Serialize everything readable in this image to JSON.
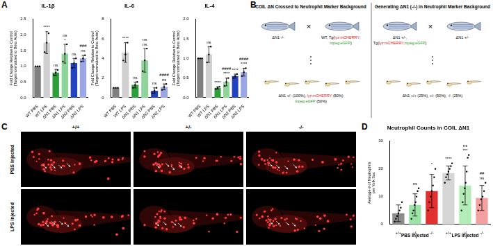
{
  "panel_labels": [
    "A",
    "B",
    "C",
    "D"
  ],
  "chart_data": [
    {
      "type": "bar",
      "title": "IL-1β",
      "ylabel": [
        "Fold Change Relative to Control",
        "(Target normalized to Beta Actin)"
      ],
      "categories": [
        "WT PBS",
        "WT LPS",
        "ΔN1 PBS",
        "ΔN1 LPS",
        "ΔN2 PBS",
        "ΔN2 LPS"
      ],
      "values": [
        1.0,
        1.75,
        0.8,
        1.4,
        1.1,
        1.25
      ],
      "colors": [
        "#7f7f7f",
        "#d0d0d0",
        "#2e9e3a",
        "#8fd49a",
        "#2342c0",
        "#9aa6e6"
      ],
      "errors": [
        0,
        0.35,
        0.1,
        0.3,
        0.15,
        0.1
      ],
      "points": [
        [
          1.0,
          1.0,
          1.0
        ],
        [
          1.45,
          1.75,
          2.05
        ],
        [
          0.72,
          0.8,
          0.88
        ],
        [
          1.15,
          1.4,
          1.7
        ],
        [
          0.95,
          1.1,
          1.25
        ],
        [
          1.15,
          1.25,
          1.35
        ]
      ],
      "annotations": [
        [],
        [
          "****"
        ],
        [
          "ns"
        ],
        [
          "*",
          "ns"
        ],
        [
          "ns"
        ],
        [
          "ns",
          "###"
        ]
      ],
      "ylim": [
        0,
        2.5
      ],
      "yticks": [
        {
          "value": 0,
          "label": "0.0"
        },
        {
          "value": 0.5,
          "label": "0.5"
        },
        {
          "value": 1,
          "label": "1.0"
        },
        {
          "value": 1.5,
          "label": "1.5"
        },
        {
          "value": 2,
          "label": "2.0"
        },
        {
          "value": 2.5,
          "label": "2.5"
        }
      ],
      "grid": false
    },
    {
      "type": "bar",
      "title": "IL-6",
      "ylabel": [
        "Fold Change Relative to Control",
        "(Target normalized to Beta Actin)"
      ],
      "categories": [
        "WT PBS",
        "WT LPS",
        "ΔN1 PBS",
        "ΔN1 LPS",
        "ΔN2 PBS",
        "ΔN2 LPS"
      ],
      "values": [
        1.0,
        4.6,
        1.3,
        3.8,
        0.7,
        1.1
      ],
      "colors": [
        "#7f7f7f",
        "#d0d0d0",
        "#2e9e3a",
        "#8fd49a",
        "#2342c0",
        "#9aa6e6"
      ],
      "errors": [
        0,
        1.0,
        0.3,
        1.2,
        0.3,
        0.3
      ],
      "points": [
        [
          1.0,
          1.0,
          1.0
        ],
        [
          3.8,
          4.4,
          5.6
        ],
        [
          1.0,
          1.3,
          1.6
        ],
        [
          2.7,
          3.8,
          5.0
        ],
        [
          0.45,
          0.7,
          1.0
        ],
        [
          0.8,
          1.1,
          1.4
        ]
      ],
      "annotations": [
        [],
        [
          "****"
        ],
        [
          "ns"
        ],
        [
          "ns",
          "ns"
        ],
        [
          "ns"
        ],
        [
          "ns",
          "####"
        ]
      ],
      "ylim": [
        0,
        8
      ],
      "yticks": [
        0,
        2,
        4,
        6,
        8
      ],
      "grid": false
    },
    {
      "type": "bar",
      "title": "IL-4",
      "ylabel": [
        "Fold Change Relative to Control",
        "(Target normalized to Beta Actin)"
      ],
      "categories": [
        "WT PBS",
        "WT LPS",
        "ΔN1 PBS",
        "ΔN1 LPS",
        "ΔN2 PBS",
        "ΔN2 LPS"
      ],
      "values": [
        1.0,
        1.1,
        0.25,
        0.4,
        0.55,
        0.65
      ],
      "colors": [
        "#7f7f7f",
        "#d0d0d0",
        "#2e9e3a",
        "#8fd49a",
        "#2342c0",
        "#9aa6e6"
      ],
      "errors": [
        0,
        0.2,
        0.03,
        0.1,
        0.05,
        0.1
      ],
      "points": [
        [
          1.0,
          1.0,
          1.0
        ],
        [
          0.9,
          1.1,
          1.3
        ],
        [
          0.22,
          0.25,
          0.28
        ],
        [
          0.3,
          0.4,
          0.5
        ],
        [
          0.5,
          0.55,
          0.6
        ],
        [
          0.55,
          0.65,
          0.75
        ]
      ],
      "annotations": [
        [],
        [
          "ns"
        ],
        [
          "****"
        ],
        [
          "****",
          "####"
        ],
        [
          "****"
        ],
        [
          "****",
          "####"
        ]
      ],
      "ylim": [
        0,
        2
      ],
      "yticks": [
        {
          "value": 0,
          "label": "0.0"
        },
        {
          "value": 0.5,
          "label": "0.5"
        },
        {
          "value": 1,
          "label": "1.0"
        },
        {
          "value": 1.5,
          "label": "1.5"
        },
        {
          "value": 2,
          "label": "2.0"
        }
      ],
      "grid": false
    },
    {
      "type": "bar",
      "title": "Neutrophil Counts in COIL ΔN1",
      "ylabel": [
        "Average # of Neutrophils",
        "per Yolk Sac"
      ],
      "categories": [
        "+/+",
        "+/-",
        "-/-",
        "+/+",
        "+/-",
        "-/-"
      ],
      "groups": [
        {
          "name": "PBS Injected",
          "categories": [
            0,
            1,
            2
          ]
        },
        {
          "name": "LPS Injected",
          "categories": [
            3,
            4,
            5
          ]
        }
      ],
      "values": [
        4,
        7,
        12,
        18.5,
        14,
        9.5
      ],
      "colors": [
        "#8c8c8c",
        "#9be3a6",
        "#e03030",
        "#d6d6d6",
        "#b4ecb8",
        "#f4a0a0"
      ],
      "errors": [
        3,
        4,
        6,
        2.5,
        7,
        4.5
      ],
      "points": [
        [
          1,
          2,
          3,
          4,
          5,
          6,
          8
        ],
        [
          2,
          4,
          5,
          7,
          8,
          10,
          12,
          13
        ],
        [
          5,
          8,
          10,
          12,
          14,
          17,
          20
        ],
        [
          15,
          17,
          18,
          19,
          20,
          21,
          22
        ],
        [
          5,
          8,
          11,
          13,
          15,
          19,
          24,
          25
        ],
        [
          5,
          7,
          9,
          10,
          12,
          15
        ]
      ],
      "annotations": [
        [],
        [
          "ns"
        ],
        [
          "*"
        ],
        [
          "****"
        ],
        [
          "***",
          "ns"
        ],
        [
          "ns",
          "##"
        ]
      ],
      "ylim": [
        0,
        30
      ],
      "yticks": [
        0,
        10,
        20,
        30
      ],
      "grid": false
    }
  ],
  "diagram": {
    "cross_symbol": "×",
    "halves": [
      {
        "title": "COIL ΔN Crossed to Neutrophil Marker Background",
        "parent1": [
          [
            {
              "text": "ΔN1 -/-"
            }
          ]
        ],
        "parent2": [
          [
            {
              "text": "WT, Tg("
            },
            {
              "text": "lyz:mCHERRY",
              "color": "#d62020"
            },
            {
              "text": ","
            }
          ],
          [
            {
              "text": "mpeg:eGFP",
              "color": "#1a9a1a"
            },
            {
              "text": ")"
            }
          ]
        ],
        "offspring": [
          [
            {
              "text": "ΔN1 +/- (100%), "
            },
            {
              "text": "lyz:mCHERRY",
              "color": "#d62020"
            },
            {
              "text": " (50%)"
            }
          ],
          [
            {
              "text": "mpeg:eGFP",
              "color": "#1a9a1a"
            },
            {
              "text": " (50%)"
            }
          ]
        ]
      },
      {
        "title": "Generating ΔN1 (-/-) in Neutrophil Marker Background",
        "parent1": [
          [
            {
              "text": "ΔN1 +/-,"
            }
          ],
          [
            {
              "text": "Tg("
            },
            {
              "text": "lyz:mCHERRY",
              "color": "#d62020"
            },
            {
              "text": ","
            },
            {
              "text": "mpeg:eGFP",
              "color": "#1a9a1a"
            },
            {
              "text": ")"
            }
          ]
        ],
        "parent2": [
          [
            {
              "text": "ΔN1 +/-"
            }
          ]
        ],
        "offspring": [
          [
            {
              "text": "ΔN1 +/+ (25%), +/- (50%), -/- (25%)"
            }
          ]
        ]
      }
    ]
  },
  "images": {
    "column_labels": [
      "+/+",
      "+/-",
      "-/-"
    ],
    "row_labels": [
      "PBS Injected",
      "LPS Injected"
    ]
  }
}
